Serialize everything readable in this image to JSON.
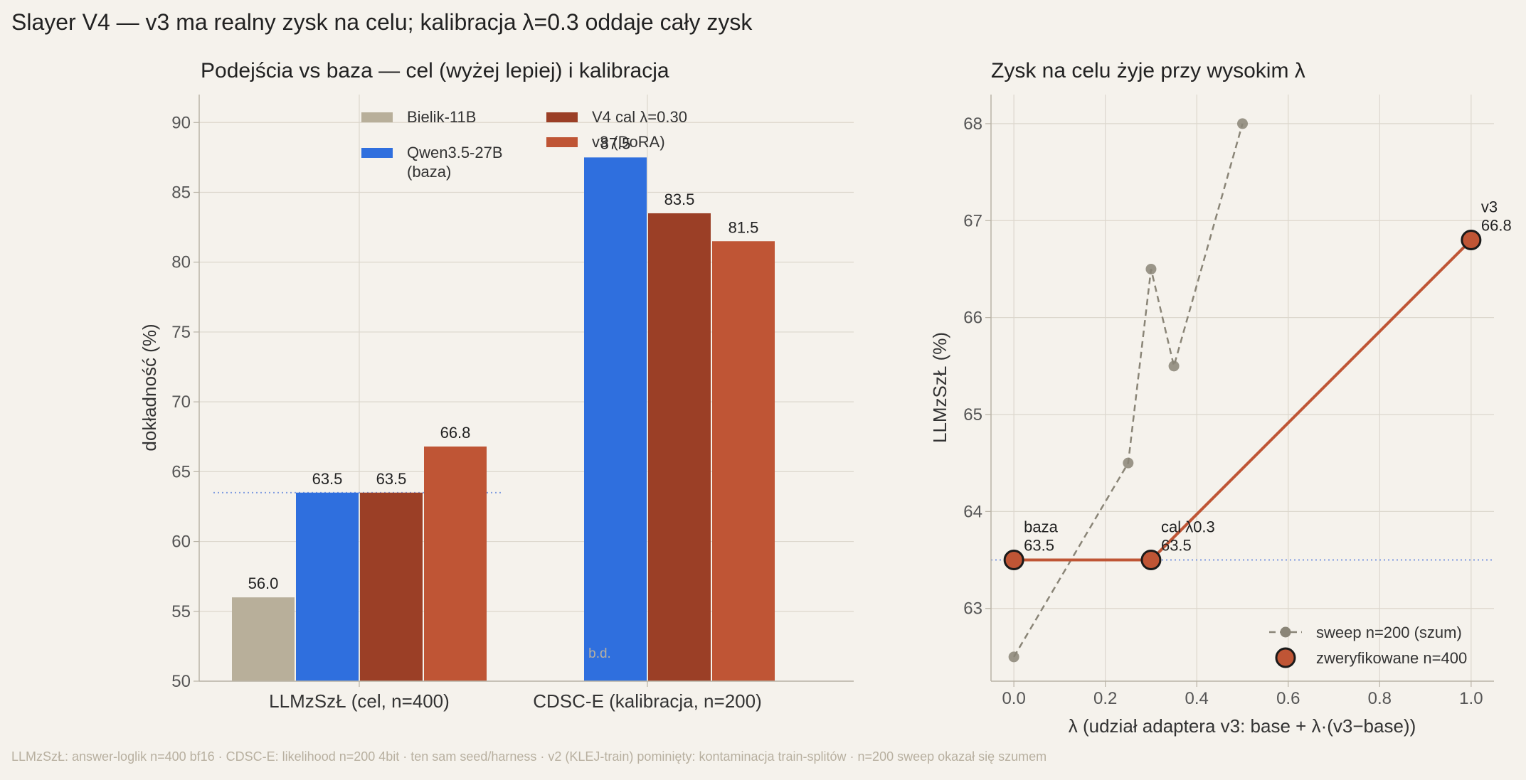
{
  "suptitle": "Slayer V4 — v3 ma realny zysk na celu; kalibracja λ=0.3 oddaje cały zysk",
  "footer": "LLMzSzŁ: answer-loglik n=400 bf16 · CDSC-E: likelihood n=200 4bit · ten sam seed/harness · v2 (KLEJ-train) pominięty: kontaminacja train-splitów · n=200 sweep okazał się szumem",
  "colors": {
    "background": "#f5f2ec",
    "grid": "#dcd7cd",
    "axis": "#b9b3a6",
    "text": "#333333",
    "tick_text": "#555555",
    "muted": "#b8b0a0",
    "baseline_dotted": "#7f9be0",
    "bielik": "#b8af9a",
    "qwen": "#2f6fde",
    "v4cal": "#9b3f26",
    "v3": "#bf5535",
    "sweep": "#8a8577"
  },
  "chart_data": [
    {
      "type": "bar",
      "title": "Podejścia vs baza — cel (wyżej lepiej) i kalibracja",
      "xlabel": "",
      "ylabel": "dokładność (%)",
      "ylim": [
        50,
        92
      ],
      "yticks": [
        50,
        55,
        60,
        65,
        70,
        75,
        80,
        85,
        90
      ],
      "grid": true,
      "legend_position": "top-center",
      "categories": [
        "LLMzSzŁ  (cel, n=400)",
        "CDSC-E  (kalibracja, n=200)"
      ],
      "series": [
        {
          "name": "Bielik-11B",
          "values": [
            56.0,
            null
          ],
          "labels": [
            "56.0",
            ""
          ]
        },
        {
          "name": "Qwen3.5-27B\n(baza)",
          "values": [
            63.5,
            87.5
          ],
          "labels": [
            "63.5",
            "87.5"
          ]
        },
        {
          "name": "V4 cal λ=0.30",
          "values": [
            63.5,
            83.5
          ],
          "labels": [
            "63.5",
            "83.5"
          ]
        },
        {
          "name": "v3 (DoRA)",
          "values": [
            66.8,
            81.5
          ],
          "labels": [
            "66.8",
            "81.5"
          ]
        }
      ],
      "missing_label": "b.d.",
      "baseline_line": 63.5
    },
    {
      "type": "line",
      "title": "Zysk na celu żyje przy wysokim λ",
      "xlabel": "λ  (udział adaptera v3:  base + λ·(v3−base))",
      "ylabel": "LLMzSzŁ (%)",
      "xlim": [
        -0.05,
        1.05
      ],
      "ylim": [
        62.25,
        68.3
      ],
      "xticks": [
        0.0,
        0.2,
        0.4,
        0.6,
        0.8,
        1.0
      ],
      "xtick_labels": [
        "0.0",
        "0.2",
        "0.4",
        "0.6",
        "0.8",
        "1.0"
      ],
      "yticks": [
        63,
        64,
        65,
        66,
        67,
        68
      ],
      "grid": true,
      "legend_position": "bottom-right",
      "baseline_line": 63.5,
      "series": [
        {
          "name": "sweep n=200 (szum)",
          "style": "dashed",
          "x": [
            0.0,
            0.25,
            0.3,
            0.35,
            0.5
          ],
          "y": [
            62.5,
            64.5,
            66.5,
            65.5,
            68.0
          ]
        },
        {
          "name": "zweryfikowane n=400",
          "style": "solid",
          "x": [
            0.0,
            0.3,
            1.0
          ],
          "y": [
            63.5,
            63.5,
            66.8
          ],
          "annotations": [
            {
              "line1": "baza",
              "line2": "63.5"
            },
            {
              "line1": "cal λ0.3",
              "line2": "63.5"
            },
            {
              "line1": "v3",
              "line2": "66.8"
            }
          ]
        }
      ]
    }
  ]
}
